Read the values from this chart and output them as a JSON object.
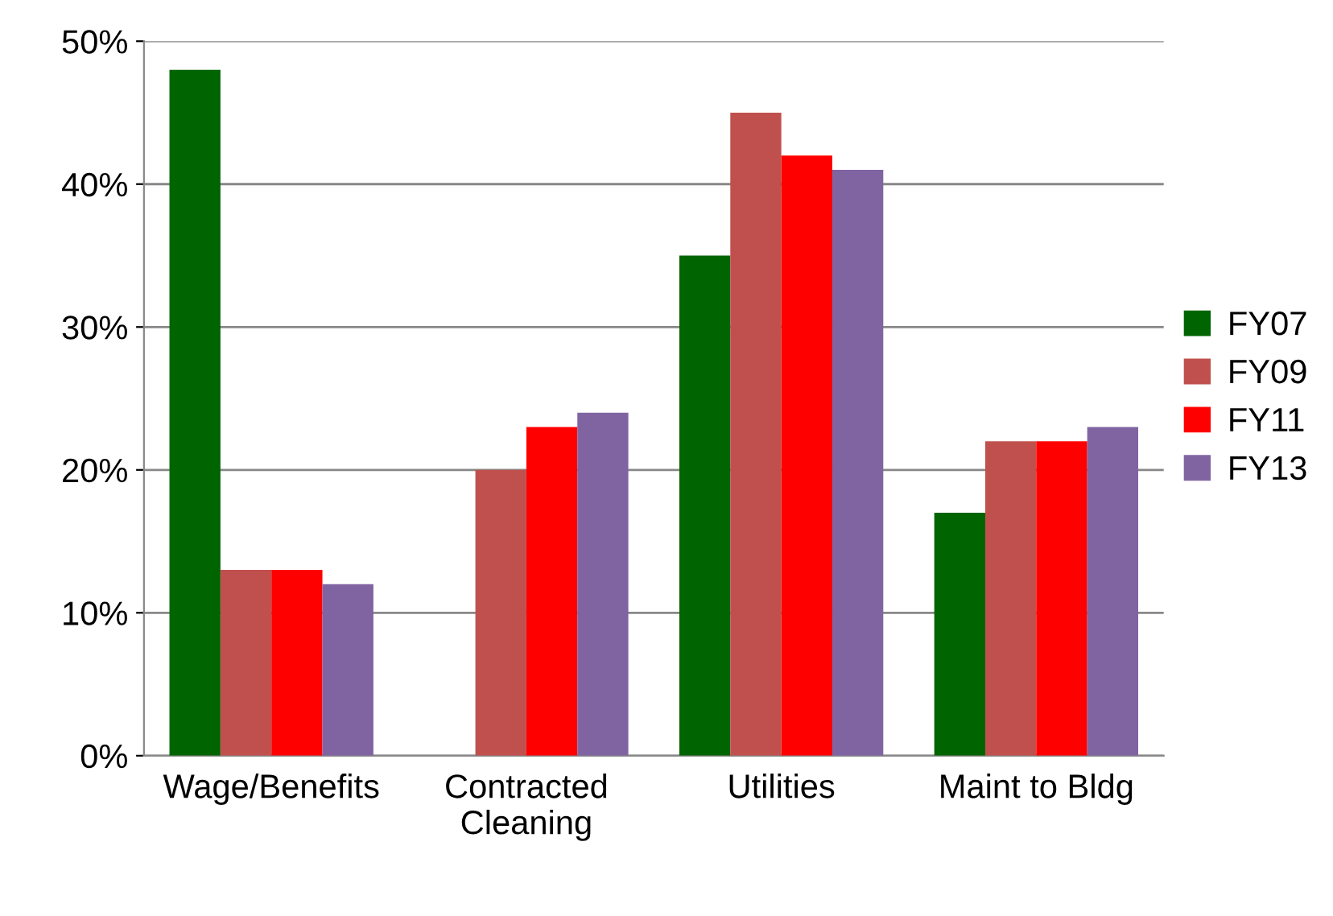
{
  "chart_data": {
    "type": "bar",
    "categories": [
      "Wage/Benefits",
      "Contracted\nCleaning",
      "Utilities",
      "Maint to Bldg"
    ],
    "series": [
      {
        "name": "FY07",
        "color": "#006400",
        "values": [
          48,
          0,
          35,
          17
        ]
      },
      {
        "name": "FY09",
        "color": "#c0504d",
        "values": [
          13,
          20,
          45,
          22
        ]
      },
      {
        "name": "FY11",
        "color": "#ff0000",
        "values": [
          13,
          23,
          42,
          22
        ]
      },
      {
        "name": "FY13",
        "color": "#8064a2",
        "values": [
          12,
          24,
          41,
          23
        ]
      }
    ],
    "ylim": [
      0,
      50
    ],
    "yticks": [
      {
        "value": 0,
        "label": "0%"
      },
      {
        "value": 10,
        "label": "10%"
      },
      {
        "value": 20,
        "label": "20%"
      },
      {
        "value": 30,
        "label": "30%"
      },
      {
        "value": 40,
        "label": "40%"
      },
      {
        "value": 50,
        "label": "50%"
      }
    ],
    "grid": "y",
    "legend": "right"
  }
}
